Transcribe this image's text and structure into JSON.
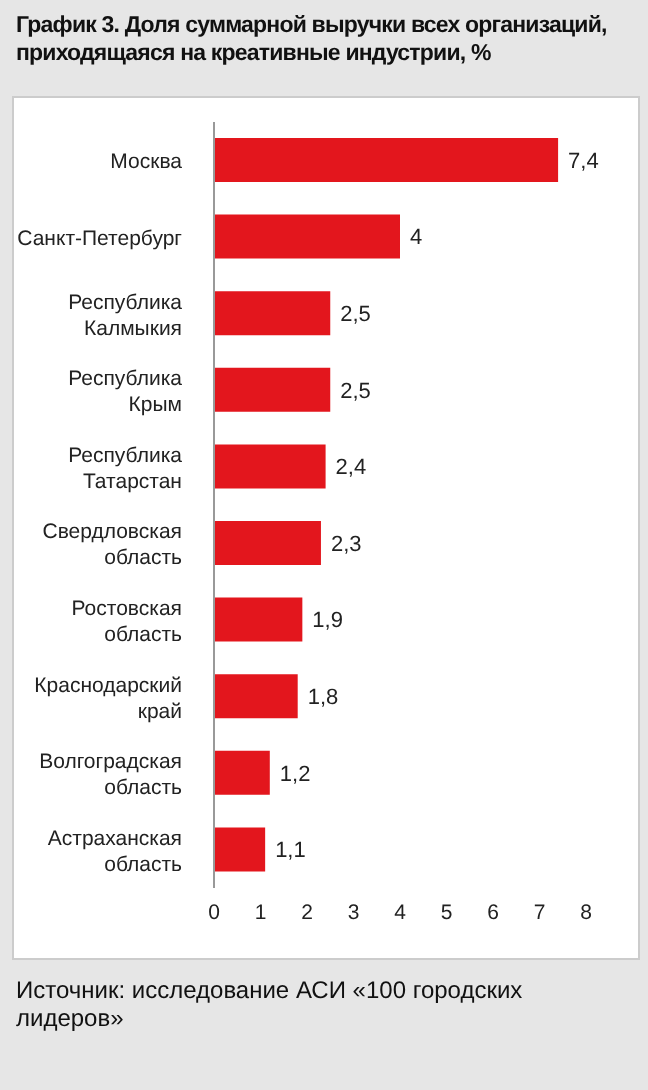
{
  "chart_data": {
    "type": "bar",
    "orientation": "horizontal",
    "title": "График 3. Доля суммарной выручки всех организаций, приходящаяся на креативные индустрии, %",
    "categories": [
      "Москва",
      "Санкт-Петербург",
      "Республика Калмыкия",
      "Республика Крым",
      "Республика Татарстан",
      "Свердловская область",
      "Ростовская область",
      "Краснодарский край",
      "Волгоградская область",
      "Астраханская область"
    ],
    "values": [
      7.4,
      4,
      2.5,
      2.5,
      2.4,
      2.3,
      1.9,
      1.8,
      1.2,
      1.1
    ],
    "value_labels": [
      "7,4",
      "4",
      "2,5",
      "2,5",
      "2,4",
      "2,3",
      "1,9",
      "1,8",
      "1,2",
      "1,1"
    ],
    "color": "#e3161d",
    "xlim": [
      0,
      8
    ],
    "xticks": [
      0,
      1,
      2,
      3,
      4,
      5,
      6,
      7,
      8
    ],
    "annotations": [
      "Источник: исследование АСИ «100 городских лидеров»"
    ]
  }
}
